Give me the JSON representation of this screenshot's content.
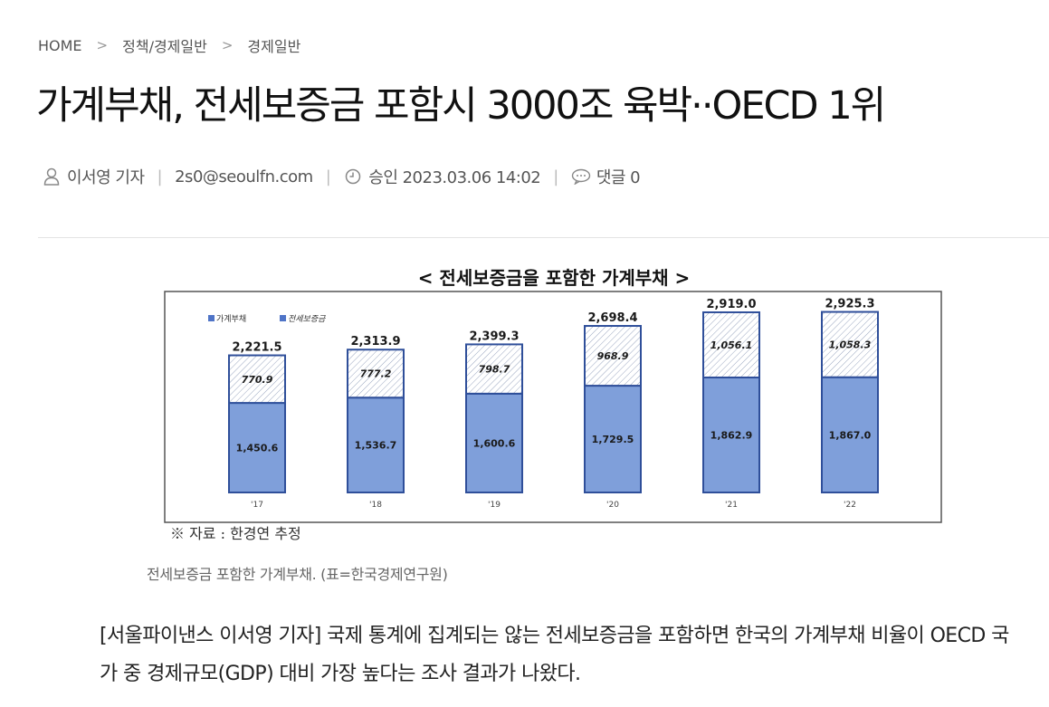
{
  "breadcrumb": {
    "home": "HOME",
    "level1": "정책/경제일반",
    "level2": "경제일반",
    "separator": ">"
  },
  "article": {
    "title": "가계부채, 전세보증금 포함시 3000조 육박··OECD 1위",
    "reporter": "이서영 기자",
    "email": "2s0@seoulfn.com",
    "approved": "승인 2023.03.06 14:02",
    "comments": "댓글 0",
    "body": "[서울파이낸스 이서영 기자] 국제 통계에 집계되는 않는 전세보증금을 포함하면 한국의 가계부채 비율이 OECD 국가 중 경제규모(GDP) 대비 가장 높다는 조사 결과가 나왔다."
  },
  "figure": {
    "caption": "전세보증금 포함한 가계부채. (표=한국경제연구원)",
    "source": "※ 자료 : 한경연 추정"
  },
  "icons": {
    "reporter": "person-icon",
    "time": "clock-icon",
    "comments": "speech-bubble-icon"
  },
  "chart_data": {
    "type": "bar",
    "title": "< 전세보증금을 포함한 가계부채 >",
    "categories": [
      "'17",
      "'18",
      "'19",
      "'20",
      "'21",
      "'22"
    ],
    "series": [
      {
        "name": "가계부채",
        "values": [
          1450.6,
          1536.7,
          1600.6,
          1729.5,
          1862.9,
          1867.0
        ],
        "labels": [
          "1,450.6",
          "1,536.7",
          "1,600.6",
          "1,729.5",
          "1,862.9",
          "1,867.0"
        ],
        "color": "#7f9fda"
      },
      {
        "name": "전세보증금",
        "values": [
          770.9,
          777.2,
          798.7,
          968.9,
          1056.1,
          1058.3
        ],
        "labels": [
          "770.9",
          "777.2",
          "798.7",
          "968.9",
          "1,056.1",
          "1,058.3"
        ],
        "color": "#ffffff"
      }
    ],
    "totals": [
      "2,221.5",
      "2,313.9",
      "2,399.3",
      "2,698.4",
      "2,919.0",
      "2,925.3"
    ],
    "stacked": true,
    "legend": "top-left",
    "grid": false,
    "ylim": [
      0,
      3300
    ]
  }
}
